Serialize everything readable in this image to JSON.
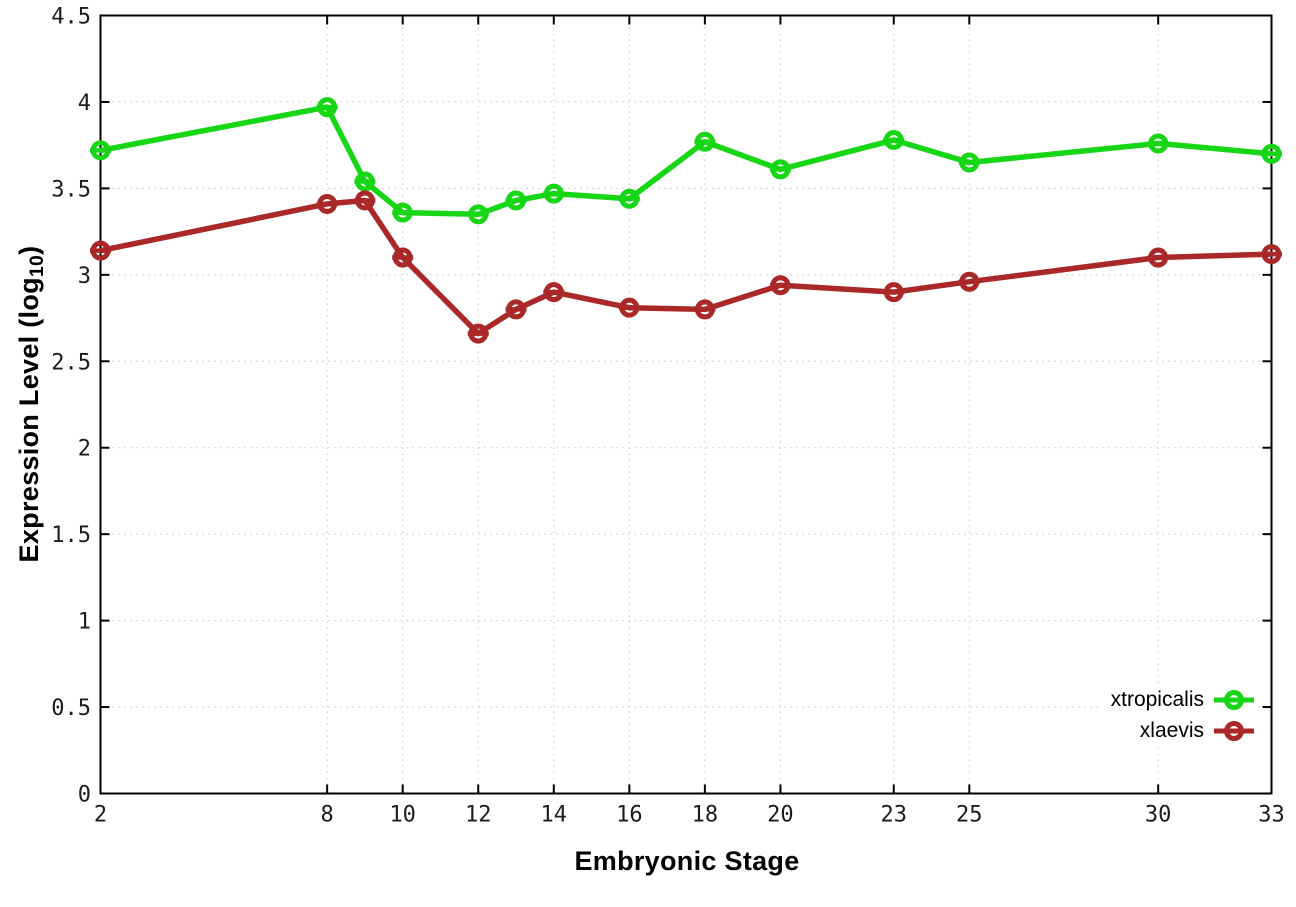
{
  "chart_data": {
    "type": "line",
    "title": "",
    "xlabel": "Embryonic Stage",
    "ylabel": {
      "prefix": "Expression Level (log",
      "sub": "10",
      "suffix": ")"
    },
    "xlim": [
      2,
      33
    ],
    "ylim": [
      0,
      4.5
    ],
    "grid": "dotted",
    "legend_position": "inside-bottom-right",
    "marker_style": "open-circle-with-error-cap",
    "x_ticks": {
      "values": [
        2,
        8,
        10,
        12,
        14,
        16,
        18,
        20,
        23,
        25,
        30,
        33
      ],
      "labels": [
        "2",
        "8",
        "10",
        "12",
        "14",
        "16",
        "18",
        "20",
        "23",
        "25",
        "30",
        "33"
      ]
    },
    "y_ticks": {
      "values": [
        0,
        0.5,
        1,
        1.5,
        2,
        2.5,
        3,
        3.5,
        4,
        4.5
      ],
      "labels": [
        "0",
        "0.5",
        "1",
        "1.5",
        "2",
        "2.5",
        "3",
        "3.5",
        "4",
        "4.5"
      ]
    },
    "x": [
      2,
      8,
      9,
      10,
      12,
      13,
      14,
      16,
      18,
      20,
      23,
      25,
      30,
      33
    ],
    "series": [
      {
        "name": "xtropicalis",
        "color": "#16d616",
        "values": [
          3.72,
          3.97,
          3.54,
          3.36,
          3.35,
          3.43,
          3.47,
          3.44,
          3.77,
          3.61,
          3.78,
          3.65,
          3.76,
          3.7
        ]
      },
      {
        "name": "xlaevis",
        "color": "#aa2828",
        "values": [
          3.14,
          3.41,
          3.43,
          3.1,
          2.66,
          2.8,
          2.9,
          2.81,
          2.8,
          2.94,
          2.9,
          2.96,
          3.1,
          3.12
        ]
      }
    ],
    "colors": {
      "background": "#ffffff",
      "border": "#000000",
      "grid": "#c8c8c8",
      "tick_text": "#1c1c1c",
      "title_text": "#000000",
      "legend_text": "#000000"
    }
  }
}
